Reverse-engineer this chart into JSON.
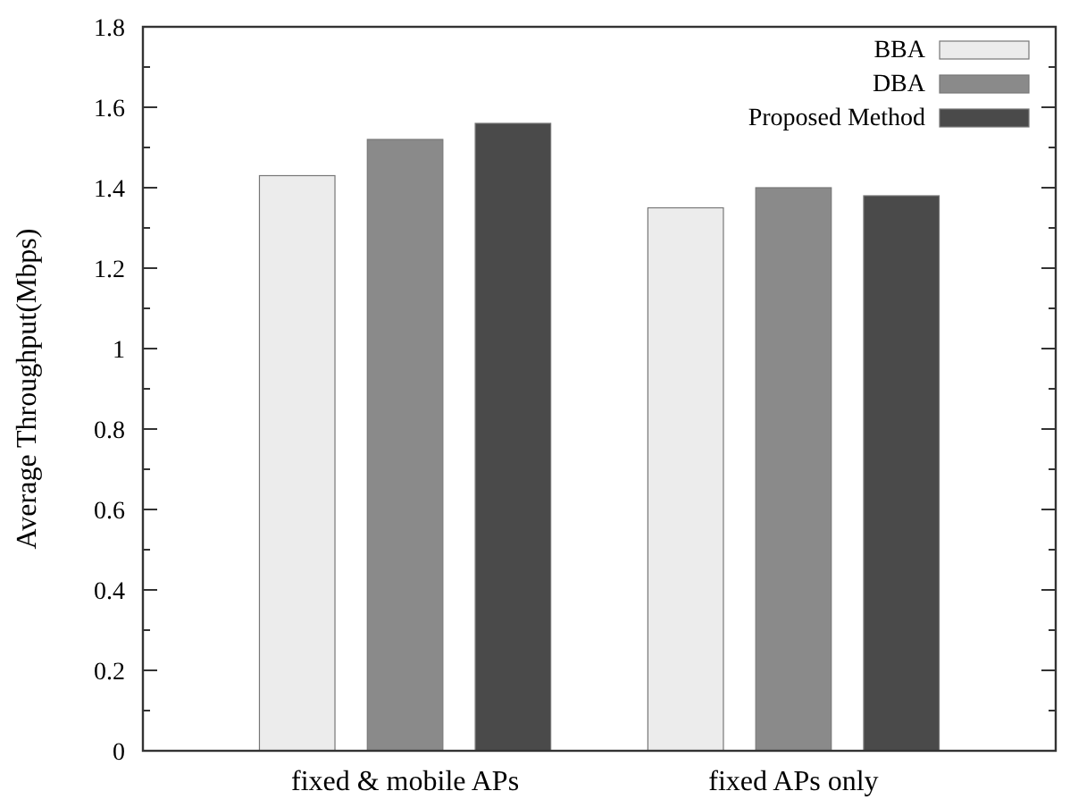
{
  "chart_data": {
    "type": "bar",
    "ylabel": "Average Throughput(Mbps)",
    "categories": [
      "fixed & mobile APs",
      "fixed APs only"
    ],
    "series": [
      {
        "name": "BBA",
        "color": "#ececec",
        "values": [
          1.43,
          1.35
        ]
      },
      {
        "name": "DBA",
        "color": "#8a8a8a",
        "values": [
          1.52,
          1.4
        ]
      },
      {
        "name": "Proposed Method",
        "color": "#4a4a4a",
        "values": [
          1.56,
          1.38
        ]
      }
    ],
    "ylim": [
      0,
      1.8
    ],
    "yticks": [
      0,
      0.2,
      0.4,
      0.6,
      0.8,
      1,
      1.2,
      1.4,
      1.6,
      1.8
    ],
    "grid": false,
    "legend": "top right"
  }
}
